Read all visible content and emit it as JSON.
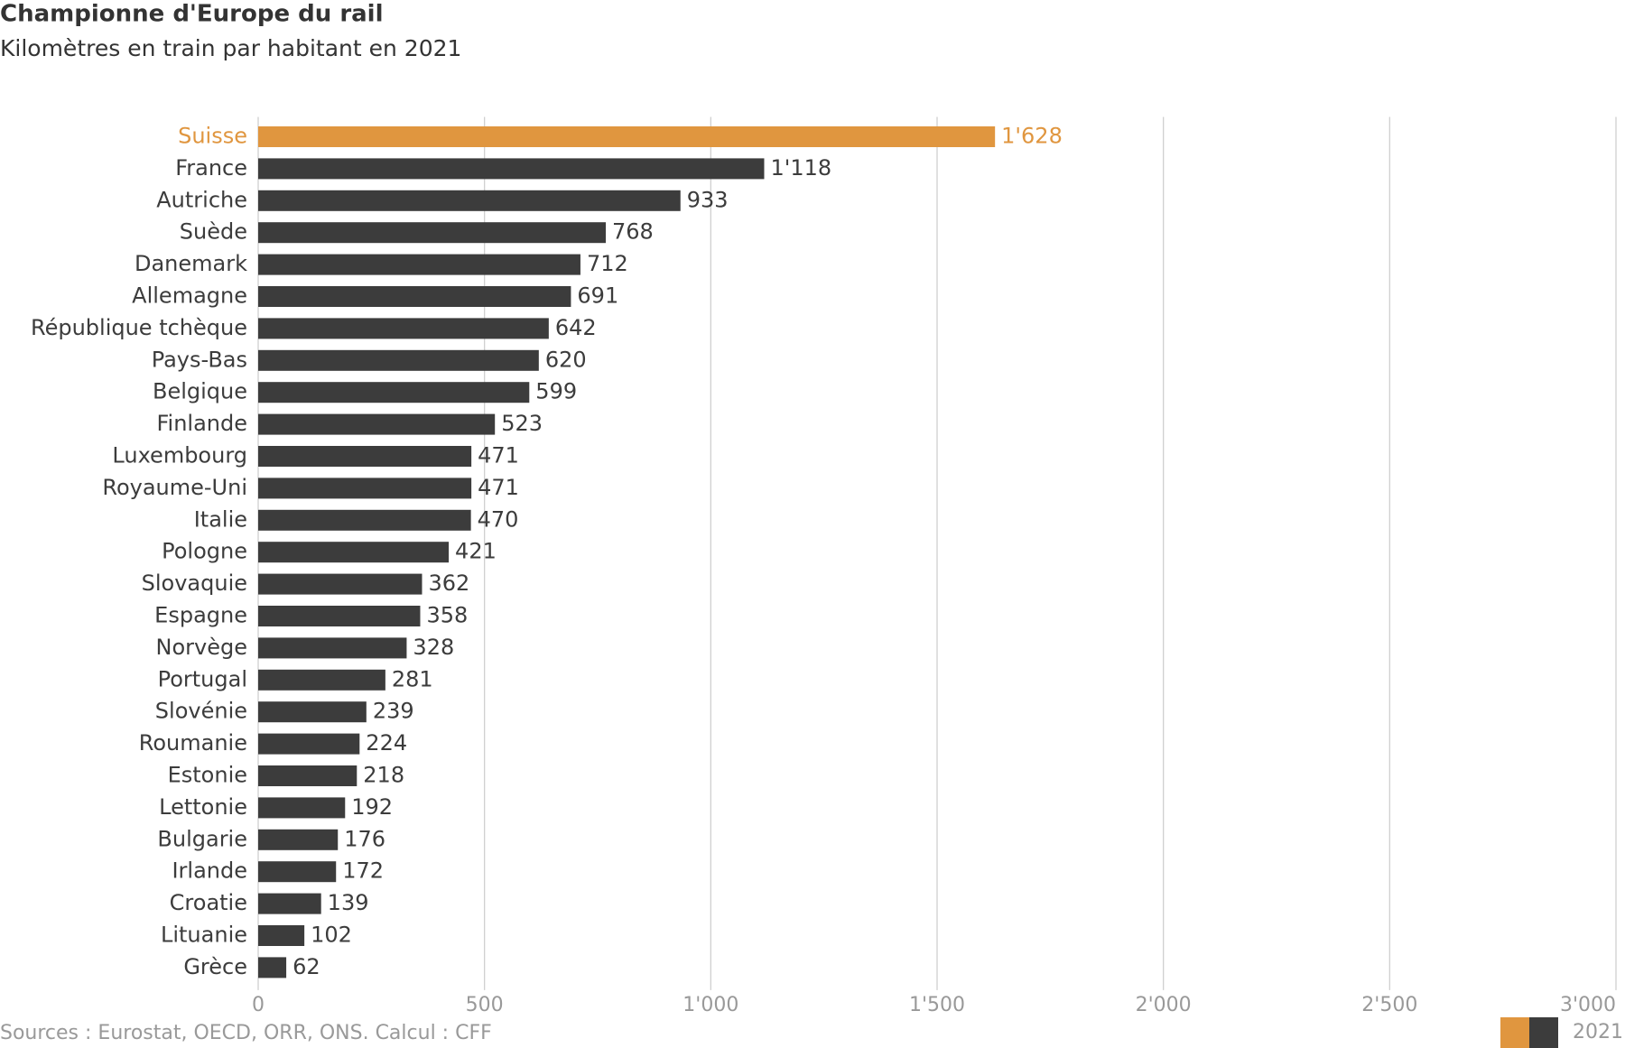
{
  "chart_data": {
    "type": "bar",
    "orientation": "horizontal",
    "title": "Championne d'Europe du rail",
    "subtitle": "Kilomètres en train par habitant en 2021",
    "source": "Sources : Eurostat, OECD, ORR, ONS. Calcul : CFF",
    "categories": [
      "Suisse",
      "France",
      "Autriche",
      "Suède",
      "Danemark",
      "Allemagne",
      "République tchèque",
      "Pays-Bas",
      "Belgique",
      "Finlande",
      "Luxembourg",
      "Royaume-Uni",
      "Italie",
      "Pologne",
      "Slovaquie",
      "Espagne",
      "Norvège",
      "Portugal",
      "Slovénie",
      "Roumanie",
      "Estonie",
      "Lettonie",
      "Bulgarie",
      "Irlande",
      "Croatie",
      "Lituanie",
      "Grèce"
    ],
    "series": [
      {
        "name": "2021",
        "values": [
          1628,
          1118,
          933,
          768,
          712,
          691,
          642,
          620,
          599,
          523,
          471,
          471,
          470,
          421,
          362,
          358,
          328,
          281,
          239,
          224,
          218,
          192,
          176,
          172,
          139,
          102,
          62
        ],
        "value_labels": [
          "1'628",
          "1'118",
          "933",
          "768",
          "712",
          "691",
          "642",
          "620",
          "599",
          "523",
          "471",
          "471",
          "470",
          "421",
          "362",
          "358",
          "328",
          "281",
          "239",
          "224",
          "218",
          "192",
          "176",
          "172",
          "139",
          "102",
          "62"
        ],
        "colors": [
          "#e0963f",
          "#3c3c3c",
          "#3c3c3c",
          "#3c3c3c",
          "#3c3c3c",
          "#3c3c3c",
          "#3c3c3c",
          "#3c3c3c",
          "#3c3c3c",
          "#3c3c3c",
          "#3c3c3c",
          "#3c3c3c",
          "#3c3c3c",
          "#3c3c3c",
          "#3c3c3c",
          "#3c3c3c",
          "#3c3c3c",
          "#3c3c3c",
          "#3c3c3c",
          "#3c3c3c",
          "#3c3c3c",
          "#3c3c3c",
          "#3c3c3c",
          "#3c3c3c",
          "#3c3c3c",
          "#3c3c3c",
          "#3c3c3c"
        ]
      }
    ],
    "xlim": [
      0,
      3000
    ],
    "xticks": [
      0,
      500,
      {
        "value": 1000,
        "label": "1'000"
      },
      {
        "value": 1500,
        "label": "1'500"
      },
      {
        "value": 2000,
        "label": "2'000"
      },
      {
        "value": 2500,
        "label": "2'500"
      },
      {
        "value": 3000,
        "label": "3'000"
      }
    ],
    "grid": true,
    "legend": "bottom-right"
  }
}
